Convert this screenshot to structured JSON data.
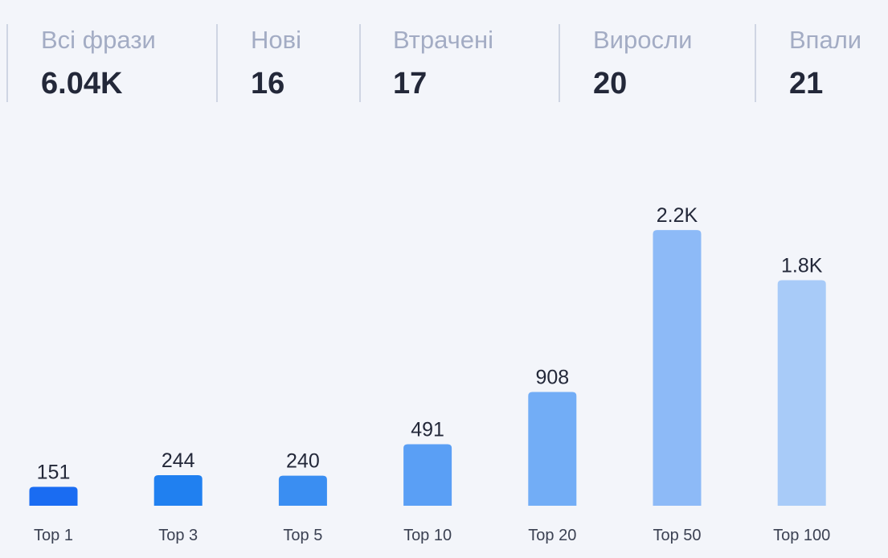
{
  "stats": [
    {
      "label": "Всі фрази",
      "value": "6.04K"
    },
    {
      "label": "Нові",
      "value": "16"
    },
    {
      "label": "Втрачені",
      "value": "17"
    },
    {
      "label": "Виросли",
      "value": "20"
    },
    {
      "label": "Впали",
      "value": "21"
    }
  ],
  "chart_data": {
    "type": "bar",
    "categories": [
      "Top 1",
      "Top 3",
      "Top 5",
      "Top 10",
      "Top 20",
      "Top 50",
      "Top 100"
    ],
    "values": [
      151,
      244,
      240,
      491,
      908,
      2200,
      1800
    ],
    "value_labels": [
      "151",
      "244",
      "240",
      "491",
      "908",
      "2.2K",
      "1.8K"
    ],
    "colors": [
      "#1a6cf2",
      "#2080f0",
      "#3a8ef2",
      "#5a9ff5",
      "#72adf6",
      "#8dbaf7",
      "#a8cbf8"
    ],
    "title": "",
    "xlabel": "",
    "ylabel": "",
    "ylim": [
      0,
      2400
    ],
    "grid": false,
    "legend": "none"
  }
}
